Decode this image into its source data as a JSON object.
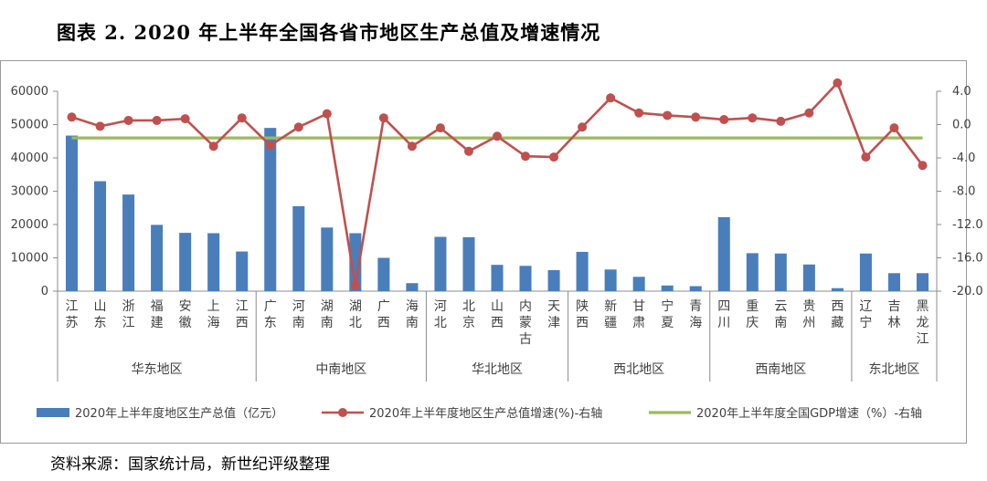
{
  "title": "图表 2. 2020 年上半年全国各省市地区生产总值及增速情况",
  "source": "资料来源：国家统计局，新世纪评级整理",
  "chart_data": {
    "type": "bar",
    "categories": [
      "江苏",
      "山东",
      "浙江",
      "福建",
      "安徽",
      "上海",
      "江西",
      "广东",
      "河南",
      "湖南",
      "湖北",
      "广西",
      "海南",
      "河北",
      "北京",
      "山西",
      "内蒙古",
      "天津",
      "陕西",
      "新疆",
      "甘肃",
      "宁夏",
      "青海",
      "四川",
      "重庆",
      "云南",
      "贵州",
      "西藏",
      "辽宁",
      "吉林",
      "黑龙江"
    ],
    "groups": [
      {
        "name": "华东地区",
        "count": 7
      },
      {
        "name": "中南地区",
        "count": 6
      },
      {
        "name": "华北地区",
        "count": 5
      },
      {
        "name": "西北地区",
        "count": 5
      },
      {
        "name": "西南地区",
        "count": 5
      },
      {
        "name": "东北地区",
        "count": 3
      }
    ],
    "series": [
      {
        "name": "2020年上半年度地区生产总值（亿元）",
        "type": "bar",
        "axis": "left",
        "color": "#4a7ebb",
        "values": [
          46700,
          33000,
          29000,
          19900,
          17500,
          17400,
          11900,
          49000,
          25500,
          19100,
          17400,
          10000,
          2400,
          16300,
          16200,
          7900,
          7600,
          6300,
          11800,
          6500,
          4300,
          1700,
          1500,
          22200,
          11400,
          11300,
          8000,
          900,
          11300,
          5400,
          5400
        ]
      },
      {
        "name": "2020年上半年度地区生产总值增速(%)-右轴",
        "type": "line",
        "axis": "right",
        "color": "#c0504d",
        "values": [
          0.9,
          -0.2,
          0.5,
          0.5,
          0.7,
          -2.6,
          0.8,
          -2.5,
          -0.3,
          1.3,
          -19.3,
          0.8,
          -2.6,
          -0.4,
          -3.2,
          -1.4,
          -3.8,
          -3.9,
          -0.3,
          3.2,
          1.4,
          1.1,
          0.9,
          0.6,
          0.8,
          0.4,
          1.4,
          5.0,
          -3.9,
          -0.4,
          -4.9
        ]
      },
      {
        "name": "2020年上半年度全国GDP增速（%）-右轴",
        "type": "line",
        "axis": "right",
        "color": "#9bbb59",
        "values": [
          -1.6,
          -1.6,
          -1.6,
          -1.6,
          -1.6,
          -1.6,
          -1.6,
          -1.6,
          -1.6,
          -1.6,
          -1.6,
          -1.6,
          -1.6,
          -1.6,
          -1.6,
          -1.6,
          -1.6,
          -1.6,
          -1.6,
          -1.6,
          -1.6,
          -1.6,
          -1.6,
          -1.6,
          -1.6,
          -1.6,
          -1.6,
          -1.6,
          -1.6,
          -1.6,
          -1.6
        ]
      }
    ],
    "y_left": {
      "min": 0,
      "max": 60000,
      "ticks": [
        0,
        10000,
        20000,
        30000,
        40000,
        50000,
        60000
      ]
    },
    "y_right": {
      "min": -20,
      "max": 4,
      "ticks": [
        4.0,
        0.0,
        -4.0,
        -8.0,
        -12.0,
        -16.0,
        -20.0
      ],
      "tick_labels": [
        "4.0",
        "0.0",
        "-4.0",
        "-8.0",
        "-12.0",
        "-16.0",
        "-20.0"
      ]
    },
    "legend_position": "bottom",
    "grid": false
  }
}
